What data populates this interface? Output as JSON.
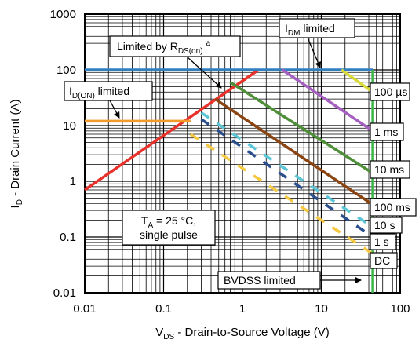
{
  "chart_data": {
    "type": "line",
    "title": "",
    "x_scale": "log",
    "y_scale": "log",
    "xlim": [
      0.01,
      100
    ],
    "ylim": [
      0.01,
      1000
    ],
    "grid": true,
    "x_ticks": [
      "0.01",
      "0.1",
      "1",
      "10",
      "100"
    ],
    "y_ticks": [
      "0.01",
      "0.1",
      "1",
      "10",
      "100",
      "1000"
    ],
    "xlabel": {
      "main": "V",
      "sub": "DS",
      "rest": " - Drain-to-Source Voltage (V)"
    },
    "ylabel": {
      "main": "I",
      "sub": "D",
      "rest": " - Drain Current (A)"
    },
    "series": [
      {
        "name": "Limited by RDS(on)",
        "color": "#e8312a",
        "points": [
          [
            0.01,
            0.7
          ],
          [
            1.6,
            100
          ]
        ]
      },
      {
        "name": "ID(ON) limited",
        "color": "#f39a2c",
        "points": [
          [
            0.01,
            12
          ],
          [
            0.22,
            12
          ]
        ]
      },
      {
        "name": "IDM limited",
        "color": "#2f7fc1",
        "points": [
          [
            0.01,
            100
          ],
          [
            45,
            100
          ]
        ]
      },
      {
        "name": "BVDSS limited",
        "color": "#3cb54a",
        "points": [
          [
            45,
            0.006
          ],
          [
            45,
            100
          ]
        ]
      },
      {
        "name": "100 µs",
        "color": "#a45fc0",
        "points": [
          [
            3.2,
            100
          ],
          [
            45,
            8
          ]
        ]
      },
      {
        "name": "1 ms",
        "color": "#d9d93a",
        "points": [
          [
            18,
            100
          ],
          [
            45,
            40
          ]
        ]
      },
      {
        "name": "10 ms",
        "color": "#4f8f3a",
        "points": [
          [
            0.7,
            60
          ],
          [
            45,
            1.4
          ]
        ]
      },
      {
        "name": "100 ms",
        "color": "#8b4513",
        "points": [
          [
            0.45,
            30
          ],
          [
            45,
            0.38
          ]
        ]
      },
      {
        "name": "10 s",
        "color": "#5bc6d6",
        "points": [
          [
            0.3,
            17
          ],
          [
            45,
            0.15
          ]
        ],
        "dashed": true
      },
      {
        "name": "1 s",
        "color": "#2b4f8c",
        "points": [
          [
            0.3,
            13
          ],
          [
            45,
            0.1
          ]
        ],
        "dashed": true
      },
      {
        "name": "DC",
        "color": "#f5c842",
        "points": [
          [
            0.22,
            7
          ],
          [
            45,
            0.05
          ]
        ],
        "dashed": true
      }
    ],
    "annotations": {
      "rds": {
        "main": "Limited by R",
        "sub": "DS(on)",
        "sup": "a"
      },
      "idon": {
        "main": "I",
        "sub": "D(ON)",
        "rest": " limited"
      },
      "idm": {
        "main": "I",
        "sub": "DM",
        "rest": " limited"
      },
      "bvdss": "BVDSS limited",
      "cond_line1": {
        "main": "T",
        "sub": "A",
        "rest": " = 25 °C,"
      },
      "cond_line2": "single pulse",
      "curve_labels": [
        "100 µs",
        "1 ms",
        "10 ms",
        "100 ms",
        "10 s",
        "1 s",
        "DC"
      ]
    }
  }
}
